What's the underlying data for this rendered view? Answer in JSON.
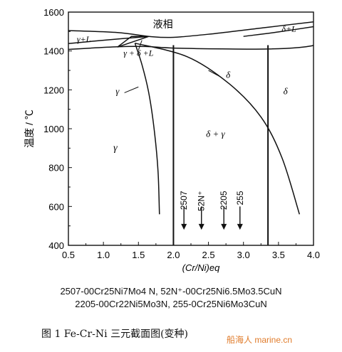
{
  "figure": {
    "y_axis": {
      "label": "温度 / ℃",
      "ticks": [
        "1600",
        "1400",
        "1200",
        "1000",
        "800",
        "600",
        "400"
      ],
      "range": [
        400,
        1600
      ]
    },
    "x_axis": {
      "label": "(Cr/Ni)eq",
      "ticks": [
        "0.5",
        "1.0",
        "1.5",
        "2.0",
        "2.5",
        "3.0",
        "3.5",
        "4.0"
      ],
      "range": [
        0.5,
        4.0
      ]
    },
    "region_labels": {
      "liquid": "液相",
      "gamma_l": "γ+L",
      "delta_l": "δ+L",
      "gamma_delta_l": "γ + δ +L",
      "gamma_boundary": "γ",
      "delta_boundary": "δ",
      "delta_right": "δ",
      "delta_gamma": "δ + γ",
      "gamma": "γ"
    },
    "alloy_markers": [
      "2507",
      "52N⁺",
      "2205",
      "255"
    ],
    "alloy_marker_x": [
      2.15,
      2.4,
      2.72,
      2.95
    ],
    "lines": {
      "solidus_vertical_x": [
        2.0,
        3.35
      ]
    }
  },
  "caption": {
    "line1": "2507-00Cr25Ni7Mo4 N, 52N⁺-00Cr25Ni6.5Mo3.5CuN",
    "line2": "2205-00Cr22Ni5Mo3N, 255-0Cr25Ni6Mo3CuN"
  },
  "title": "图 1   Fe-Cr-Ni 三元截面图(变种)",
  "watermark": "船海人 marine.cn"
}
